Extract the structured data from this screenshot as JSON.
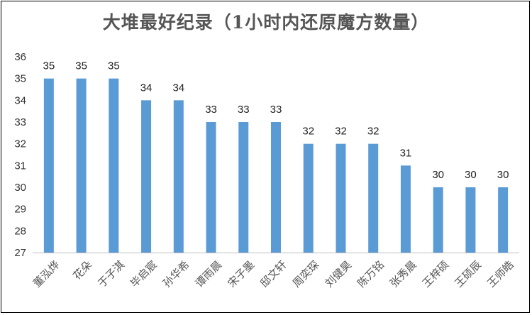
{
  "chart_data": {
    "type": "bar",
    "title": "大堆最好纪录（1小时内还原魔方数量）",
    "categories": [
      "董泓烨",
      "花朵",
      "于子淇",
      "毕启宸",
      "孙华希",
      "谭雨晨",
      "宋子墨",
      "邸文轩",
      "周奕琛",
      "刘健昊",
      "陈万铭",
      "张秀晨",
      "王梓硕",
      "王硕辰",
      "王师皓"
    ],
    "values": [
      35,
      35,
      35,
      34,
      34,
      33,
      33,
      33,
      32,
      32,
      32,
      31,
      30,
      30,
      30
    ],
    "ylim": [
      27,
      36
    ],
    "yticks": [
      27,
      28,
      29,
      30,
      31,
      32,
      33,
      34,
      35,
      36
    ],
    "xlabel": "",
    "ylabel": "",
    "grid": false,
    "legend": "none",
    "bar_color": "#5B9BD5",
    "axis_color": "#bfbfbf"
  }
}
